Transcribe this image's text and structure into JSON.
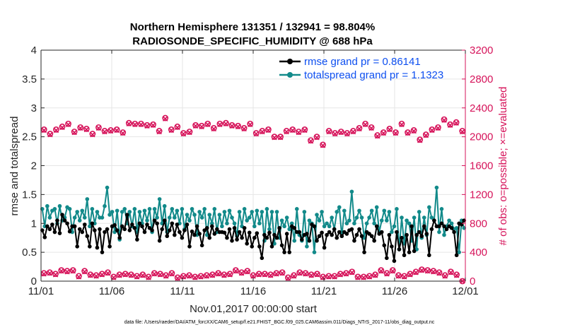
{
  "chart_data": {
    "type": "line",
    "title": "Northern Hemisphere 131351 / 132941 = 98.804%",
    "subtitle": "RADIOSONDE_SPECIFIC_HUMIDITY @ 688 hPa",
    "xlabel": "Nov.01,2017 00:00:00 start",
    "ylabel": "rmse and totalspread",
    "y2label": "# of obs: o=possible; ×=evaluated",
    "footer": "data file: /Users/raeder/DAI/ATM_forcXX/CAM6_setup/f.e21.FHIST_BGC.f09_025.CAM6assim.011/Diags_NTrS_2017-11/obs_diag_output.nc",
    "x_tick_labels": [
      "11/01",
      "11/06",
      "11/11",
      "11/16",
      "11/21",
      "11/26",
      "12/01"
    ],
    "x_tick_days": [
      0,
      5,
      10,
      15,
      20,
      25,
      30
    ],
    "xlim": [
      0,
      30
    ],
    "ylim": [
      0,
      4
    ],
    "y_ticks": [
      "0",
      "0.5",
      "1",
      "1.5",
      "2",
      "2.5",
      "3",
      "3.5",
      "4"
    ],
    "y2lim": [
      0,
      3200
    ],
    "y2_ticks": [
      "0",
      "400",
      "800",
      "1200",
      "1600",
      "2000",
      "2400",
      "2800",
      "3200"
    ],
    "colors": {
      "rmse": "#000000",
      "spread": "#128a8a",
      "obs": "#d6135a",
      "legend_text": "#0d4ff0"
    },
    "series": [
      {
        "name": "rmse grand pr = 0.86141",
        "axis": "left",
        "marker": "dot",
        "values": [
          0.88,
          0.76,
          0.95,
          0.9,
          0.98,
          0.85,
          1.05,
          0.83,
          1.15,
          1.05,
          1.0,
          0.86,
          0.95,
          0.95,
          0.6,
          0.9,
          0.85,
          0.98,
          0.78,
          0.6,
          1.0,
          0.88,
          0.58,
          0.9,
          0.5,
          0.85,
          0.9,
          0.6,
          0.95,
          0.97,
          0.88,
          0.75,
          0.95,
          0.9,
          1.15,
          0.88,
          0.98,
          0.92,
          0.72,
          1.0,
          0.95,
          0.85,
          0.98,
          0.92,
          0.88,
          1.05,
          1.0,
          0.7,
          0.9,
          1.05,
          0.78,
          0.88,
          1.0,
          0.8,
          0.98,
          0.85,
          0.75,
          0.88,
          0.98,
          0.6,
          0.86,
          0.8,
          0.95,
          0.82,
          0.62,
          0.88,
          0.92,
          0.75,
          0.95,
          0.82,
          0.9,
          0.85,
          0.85,
          0.84,
          0.75,
          0.9,
          0.7,
          0.92,
          0.72,
          0.85,
          0.75,
          0.92,
          0.65,
          0.84,
          0.6,
          0.75,
          0.83,
          0.6,
          0.4,
          0.8,
          0.75,
          0.84,
          0.6,
          0.8,
          0.75,
          0.92,
          0.62,
          0.5,
          0.82,
          0.5,
          0.95,
          0.92,
          0.85,
          0.85,
          0.72,
          0.8,
          0.82,
          0.7,
          0.98,
          0.95,
          0.7,
          0.78,
          0.84,
          0.58,
          0.8,
          0.85,
          0.8,
          0.9,
          0.75,
          0.85,
          0.78,
          0.85,
          0.82,
          0.88,
          0.9,
          0.7,
          0.8,
          0.9,
          0.78,
          0.5,
          0.85,
          0.82,
          0.78,
          0.7,
          0.95,
          0.82,
          0.85,
          0.62,
          0.4,
          0.8,
          0.6,
          0.35,
          0.85,
          0.55,
          0.75,
          0.45,
          0.8,
          0.5,
          0.95,
          0.52,
          0.8,
          0.85,
          0.78,
          0.95,
          0.82,
          0.45,
          0.9,
          1.05,
          0.95,
          0.95,
          1.0,
          0.95,
          0.9,
          0.95,
          0.92,
          0.85,
          0.45,
          1.0,
          0.98,
          1.05
        ],
        "legend_position": "top-right"
      },
      {
        "name": "totalspread grand pr = 1.1323",
        "axis": "left",
        "marker": "dot",
        "values": [
          1.25,
          0.95,
          1.3,
          1.1,
          1.22,
          1.25,
          1.0,
          1.3,
          1.05,
          1.1,
          1.28,
          1.25,
          0.85,
          1.1,
          1.2,
          1.05,
          1.22,
          1.1,
          1.42,
          0.95,
          1.25,
          1.0,
          1.2,
          1.1,
          1.1,
          1.3,
          1.62,
          1.15,
          1.2,
          0.85,
          1.22,
          0.72,
          1.2,
          1.25,
          1.0,
          1.2,
          0.95,
          1.25,
          0.85,
          1.2,
          1.0,
          1.22,
          1.05,
          1.25,
          0.85,
          1.25,
          1.1,
          1.42,
          1.0,
          1.3,
          0.85,
          1.1,
          1.25,
          1.1,
          1.22,
          1.0,
          1.25,
          0.9,
          1.15,
          1.05,
          1.25,
          1.15,
          0.8,
          1.2,
          1.1,
          1.25,
          0.8,
          1.15,
          1.0,
          1.25,
          0.85,
          1.15,
          0.95,
          1.2,
          1.0,
          1.22,
          1.1,
          1.0,
          0.78,
          1.2,
          0.95,
          1.25,
          1.05,
          1.1,
          1.2,
          0.95,
          1.22,
          1.0,
          1.2,
          0.7,
          1.25,
          0.9,
          1.2,
          0.65,
          1.2,
          0.75,
          1.05,
          0.95,
          1.1,
          0.9,
          1.0,
          0.7,
          1.25,
          0.8,
          0.7,
          1.2,
          0.6,
          1.05,
          1.0,
          0.5,
          1.15,
          1.05,
          1.2,
          0.95,
          1.0,
          0.95,
          1.1,
          0.9,
          1.2,
          1.28,
          0.78,
          1.22,
          1.0,
          1.05,
          1.55,
          1.0,
          1.1,
          1.22,
          1.1,
          0.75,
          1.0,
          1.1,
          1.22,
          1.0,
          1.28,
          0.85,
          1.05,
          1.22,
          1.05,
          1.2,
          0.85,
          0.95,
          1.25,
          0.55,
          1.1,
          0.65,
          1.05,
          1.0,
          0.7,
          1.1,
          0.55,
          1.2,
          0.75,
          1.1,
          0.8,
          1.28,
          1.1,
          1.05,
          1.62,
          0.85,
          1.25,
          0.8,
          0.95,
          1.05,
          1.0,
          0.9,
          0.92,
          0.5,
          1.05,
          0.92
        ]
      },
      {
        "name": "# obs possible",
        "axis": "right",
        "marker": "circle",
        "values": [
          2100,
          2040,
          2100,
          2140,
          2180,
          2070,
          2130,
          2110,
          2040,
          2130,
          2080,
          2090,
          2100,
          2060,
          2190,
          2180,
          2180,
          2160,
          2170,
          2080,
          2260,
          2100,
          2140,
          2050,
          2070,
          2160,
          2150,
          2180,
          2120,
          2180,
          2190,
          2160,
          2150,
          2120,
          2180,
          2050,
          2080,
          2100,
          2000,
          2000,
          2080,
          2100,
          2070,
          2100,
          1950,
          2000,
          1890,
          2080,
          2050,
          2070,
          2050,
          2080,
          2120,
          2180,
          2130,
          2020,
          2060,
          2110,
          2060,
          2180,
          2060,
          2090,
          1960,
          2030,
          2100,
          2130,
          2240,
          2170,
          2200,
          2080
        ]
      },
      {
        "name": "# obs evaluated",
        "axis": "right",
        "marker": "x",
        "values": [
          2090,
          2030,
          2090,
          2130,
          2170,
          2060,
          2120,
          2100,
          2030,
          2120,
          2070,
          2080,
          2090,
          2050,
          2180,
          2170,
          2170,
          2150,
          2160,
          2070,
          2250,
          2090,
          2130,
          2040,
          2060,
          2150,
          2140,
          2170,
          2110,
          2170,
          2180,
          2150,
          2140,
          2110,
          2170,
          2040,
          2070,
          2090,
          1990,
          1990,
          2070,
          2090,
          2060,
          2090,
          1940,
          1990,
          1880,
          2070,
          2040,
          2060,
          2040,
          2070,
          2110,
          2170,
          2120,
          2010,
          2050,
          2100,
          2050,
          2170,
          2050,
          2080,
          1950,
          2020,
          2090,
          2120,
          2230,
          2160,
          2190,
          2070
        ]
      },
      {
        "name": "# obs possible (secondary)",
        "axis": "right",
        "marker": "circle",
        "values": [
          110,
          120,
          100,
          150,
          140,
          150,
          70,
          140,
          90,
          80,
          100,
          120,
          60,
          90,
          100,
          90,
          70,
          90,
          60,
          110,
          100,
          80,
          110,
          50,
          70,
          80,
          60,
          70,
          80,
          90,
          110,
          90,
          100,
          150,
          120,
          140,
          80,
          100,
          100,
          90,
          110,
          120,
          50,
          80,
          120,
          110,
          90,
          100,
          60,
          70,
          70,
          100,
          110,
          130,
          60,
          60,
          70,
          90,
          150,
          110,
          150,
          80,
          70,
          100,
          130,
          160,
          150,
          140,
          120,
          80,
          130,
          90,
          0
        ]
      },
      {
        "name": "# obs evaluated (secondary)",
        "axis": "right",
        "marker": "x",
        "values": [
          100,
          110,
          90,
          140,
          130,
          140,
          60,
          130,
          80,
          70,
          90,
          110,
          50,
          80,
          90,
          80,
          60,
          80,
          50,
          100,
          90,
          70,
          100,
          40,
          60,
          70,
          50,
          60,
          70,
          80,
          100,
          80,
          90,
          140,
          110,
          130,
          70,
          90,
          90,
          80,
          100,
          110,
          40,
          70,
          110,
          100,
          80,
          90,
          50,
          60,
          60,
          90,
          100,
          120,
          50,
          50,
          60,
          80,
          140,
          100,
          140,
          70,
          60,
          90,
          120,
          150,
          140,
          130,
          110,
          70,
          120,
          80,
          0
        ]
      }
    ]
  }
}
